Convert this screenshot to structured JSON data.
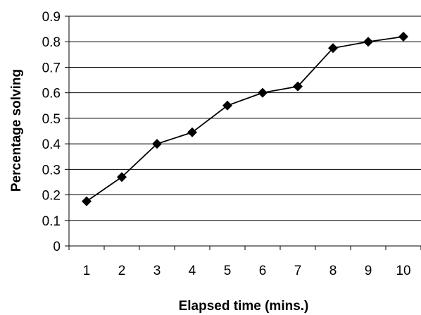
{
  "chart_data": {
    "type": "line",
    "title": "",
    "xlabel": "Elapsed time (mins.)",
    "ylabel": "Percentage solving",
    "categories": [
      "1",
      "2",
      "3",
      "4",
      "5",
      "6",
      "7",
      "8",
      "9",
      "10"
    ],
    "series": [
      {
        "values": [
          0.175,
          0.27,
          0.4,
          0.445,
          0.55,
          0.6,
          0.625,
          0.775,
          0.8,
          0.82
        ],
        "color": "#000000",
        "marker": "diamond"
      }
    ],
    "ylim": [
      0,
      0.9
    ],
    "yticks": [
      "0",
      "0.1",
      "0.2",
      "0.3",
      "0.4",
      "0.5",
      "0.6",
      "0.7",
      "0.8",
      "0.9"
    ],
    "grid": "horizontal",
    "legend": "none"
  }
}
